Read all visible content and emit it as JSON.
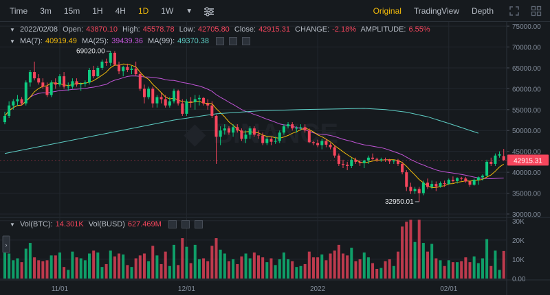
{
  "toolbar": {
    "timeframes": [
      "Time",
      "3m",
      "15m",
      "1H",
      "4H",
      "1D",
      "1W"
    ],
    "active_timeframe": "1D",
    "views": [
      "Original",
      "TradingView",
      "Depth"
    ],
    "active_view": "Original"
  },
  "legend": {
    "date": "2022/02/08",
    "open_label": "Open:",
    "open": "43870.10",
    "high_label": "High:",
    "high": "45578.78",
    "low_label": "Low:",
    "low": "42705.80",
    "close_label": "Close:",
    "close": "42915.31",
    "change_label": "CHANGE:",
    "change": "-2.18%",
    "amp_label": "AMPLITUDE:",
    "amplitude": "6.55%",
    "ma7_label": "MA(7):",
    "ma7": "40919.49",
    "ma25_label": "MA(25):",
    "ma25": "39439.36",
    "ma99_label": "MA(99):",
    "ma99": "49370.38"
  },
  "volume_legend": {
    "vol_btc_label": "Vol(BTC):",
    "vol_btc": "14.301K",
    "vol_busd_label": "Vol(BUSD)",
    "vol_busd": "627.469M"
  },
  "colors": {
    "up": "#0ecb81",
    "down": "#f6465d",
    "ma7": "#f0b90b",
    "ma25": "#c054d6",
    "ma99": "#5ecfc6",
    "background": "#161a1e",
    "grid": "#22272e"
  },
  "chart_data": {
    "type": "candlestick",
    "price_axis": {
      "ticks": [
        30000,
        35000,
        40000,
        45000,
        50000,
        55000,
        60000,
        65000,
        70000,
        75000
      ],
      "tick_labels": [
        "30000.00",
        "35000.00",
        "40000.00",
        "45000.00",
        "50000.00",
        "55000.00",
        "60000.00",
        "65000.00",
        "70000.00",
        "75000.00"
      ],
      "range": [
        29500,
        76000
      ]
    },
    "volume_axis": {
      "ticks": [
        0,
        10000,
        20000,
        30000
      ],
      "tick_labels": [
        "0.00",
        "10K",
        "20K",
        "30K"
      ],
      "range": [
        0,
        31000
      ]
    },
    "x_labels": [
      {
        "index": 13,
        "label": "11/01"
      },
      {
        "index": 43,
        "label": "12/01"
      },
      {
        "index": 74,
        "label": "2022"
      },
      {
        "index": 105,
        "label": "02/01"
      }
    ],
    "annotations": [
      {
        "index": 25,
        "price": 69020.0,
        "text": "69020.00",
        "side": "high"
      },
      {
        "index": 98,
        "price": 32950.01,
        "text": "32950.01",
        "side": "low"
      }
    ],
    "current_price": {
      "value": 42915.31,
      "text": "42915.31"
    },
    "ma99": [
      [
        0,
        44500
      ],
      [
        10,
        46500
      ],
      [
        20,
        48500
      ],
      [
        30,
        50500
      ],
      [
        40,
        52500
      ],
      [
        50,
        54000
      ],
      [
        60,
        54700
      ],
      [
        70,
        55000
      ],
      [
        80,
        55200
      ],
      [
        85,
        55300
      ],
      [
        90,
        55000
      ],
      [
        95,
        54400
      ],
      [
        100,
        53300
      ],
      [
        105,
        51700
      ],
      [
        112,
        49370
      ]
    ],
    "candles": [
      [
        52000,
        54500,
        51500,
        53500,
        18500
      ],
      [
        53500,
        57000,
        53000,
        56000,
        13000
      ],
      [
        56000,
        57500,
        55000,
        57000,
        9500
      ],
      [
        57000,
        58500,
        56000,
        57500,
        10500
      ],
      [
        57500,
        58000,
        56000,
        56500,
        8500
      ],
      [
        56500,
        62000,
        56000,
        61500,
        15500
      ],
      [
        61500,
        64500,
        60500,
        64000,
        18500
      ],
      [
        64000,
        66500,
        62000,
        62500,
        11000
      ],
      [
        62500,
        63500,
        61000,
        61500,
        9500
      ],
      [
        61500,
        62500,
        60000,
        60500,
        9000
      ],
      [
        60500,
        61500,
        58000,
        58500,
        9500
      ],
      [
        58500,
        62000,
        58000,
        61500,
        12000
      ],
      [
        61500,
        62500,
        60000,
        61000,
        12000
      ],
      [
        61000,
        63500,
        60500,
        63000,
        13500
      ],
      [
        63000,
        64000,
        60000,
        60500,
        6000
      ],
      [
        60500,
        61500,
        59500,
        60500,
        4500
      ],
      [
        60500,
        62500,
        60000,
        61800,
        14000
      ],
      [
        61800,
        62500,
        60500,
        61000,
        11000
      ],
      [
        61000,
        61500,
        59500,
        61200,
        10500
      ],
      [
        61200,
        62000,
        60500,
        61500,
        9500
      ],
      [
        61500,
        65000,
        61000,
        64500,
        13000
      ],
      [
        64500,
        65500,
        62500,
        63000,
        14500
      ],
      [
        63000,
        65500,
        62500,
        65000,
        13500
      ],
      [
        65000,
        67000,
        64500,
        66500,
        6000
      ],
      [
        66500,
        67200,
        65500,
        66200,
        7500
      ],
      [
        66200,
        69020,
        65500,
        68600,
        14500
      ],
      [
        68600,
        69000,
        65500,
        65800,
        11500
      ],
      [
        65800,
        66500,
        63500,
        64200,
        13000
      ],
      [
        64200,
        65500,
        63000,
        65200,
        12500
      ],
      [
        65200,
        66000,
        64000,
        64500,
        7000
      ],
      [
        64500,
        65500,
        63500,
        64800,
        6000
      ],
      [
        64800,
        66500,
        63000,
        63500,
        10500
      ],
      [
        63500,
        64000,
        59500,
        60000,
        12000
      ],
      [
        60000,
        61000,
        56500,
        58000,
        13000
      ],
      [
        58000,
        60500,
        57500,
        60000,
        9000
      ],
      [
        60000,
        60500,
        55500,
        56500,
        17000
      ],
      [
        56500,
        58500,
        55500,
        58000,
        12000
      ],
      [
        58000,
        59000,
        56500,
        57500,
        7500
      ],
      [
        57500,
        58500,
        55500,
        56000,
        14000
      ],
      [
        56000,
        58000,
        55500,
        57000,
        6500
      ],
      [
        57000,
        60000,
        56500,
        59500,
        17500
      ],
      [
        59500,
        59800,
        56000,
        56500,
        7000
      ],
      [
        56500,
        57500,
        53500,
        54000,
        21000
      ],
      [
        54000,
        57500,
        53500,
        57000,
        16500
      ],
      [
        57000,
        58000,
        55500,
        56800,
        8000
      ],
      [
        56800,
        58500,
        55000,
        57500,
        17500
      ],
      [
        57500,
        58500,
        56000,
        57800,
        10000
      ],
      [
        57800,
        58000,
        56000,
        56500,
        10500
      ],
      [
        56500,
        57500,
        55000,
        56000,
        9000
      ],
      [
        56000,
        57000,
        53000,
        53500,
        17000
      ],
      [
        53500,
        53800,
        42000,
        48500,
        21000
      ],
      [
        48500,
        51000,
        46500,
        50000,
        15000
      ],
      [
        50000,
        51500,
        49000,
        50500,
        13000
      ],
      [
        50500,
        51000,
        49000,
        49500,
        9000
      ],
      [
        49500,
        51500,
        48500,
        50800,
        10000
      ],
      [
        50800,
        51500,
        49500,
        50000,
        7500
      ],
      [
        50000,
        50500,
        47500,
        48000,
        11500
      ],
      [
        48000,
        50000,
        47000,
        49000,
        13000
      ],
      [
        49000,
        51000,
        48000,
        50500,
        10500
      ],
      [
        50500,
        51000,
        48500,
        49000,
        13500
      ],
      [
        49000,
        50000,
        48000,
        48800,
        12000
      ],
      [
        48800,
        49500,
        46500,
        47000,
        11000
      ],
      [
        47000,
        48500,
        46500,
        48000,
        8500
      ],
      [
        48000,
        48500,
        46500,
        47300,
        10500
      ],
      [
        47300,
        48500,
        46800,
        47500,
        7000
      ],
      [
        47500,
        50000,
        47000,
        49500,
        10000
      ],
      [
        49500,
        51500,
        49000,
        51000,
        13500
      ],
      [
        51000,
        52000,
        50500,
        51500,
        10000
      ],
      [
        51500,
        52000,
        50000,
        50500,
        9000
      ],
      [
        50500,
        51000,
        49500,
        50600,
        6000
      ],
      [
        50600,
        51500,
        50000,
        50800,
        6500
      ],
      [
        50800,
        51500,
        49500,
        50000,
        7500
      ],
      [
        50000,
        50500,
        47000,
        47200,
        14000
      ],
      [
        47200,
        47500,
        46500,
        47000,
        11000
      ],
      [
        47000,
        47800,
        46000,
        46500,
        11000
      ],
      [
        46500,
        48000,
        45500,
        47500,
        12500
      ],
      [
        47500,
        48000,
        46000,
        46600,
        9500
      ],
      [
        46600,
        47000,
        45500,
        46000,
        13000
      ],
      [
        46000,
        46500,
        43500,
        44000,
        14500
      ],
      [
        44000,
        44500,
        41500,
        42000,
        17500
      ],
      [
        42000,
        43000,
        41000,
        41800,
        13000
      ],
      [
        41800,
        42500,
        40500,
        41500,
        12000
      ],
      [
        41500,
        43500,
        41000,
        43000,
        16000
      ],
      [
        43000,
        43500,
        42000,
        42500,
        9000
      ],
      [
        42500,
        43000,
        41500,
        42200,
        10000
      ],
      [
        42200,
        43000,
        41000,
        42800,
        13500
      ],
      [
        42800,
        44000,
        42000,
        43500,
        11000
      ],
      [
        43500,
        44500,
        43000,
        43200,
        8000
      ],
      [
        43200,
        43500,
        42500,
        43000,
        5000
      ],
      [
        43000,
        43500,
        42500,
        43100,
        5500
      ],
      [
        43100,
        43500,
        42500,
        43000,
        9000
      ],
      [
        43000,
        43200,
        42000,
        42600,
        10000
      ],
      [
        42600,
        43000,
        42000,
        42800,
        6500
      ],
      [
        42800,
        43200,
        41500,
        42000,
        14000
      ],
      [
        42000,
        42500,
        39500,
        40000,
        27000
      ],
      [
        40000,
        40500,
        35500,
        36500,
        29500
      ],
      [
        36500,
        37500,
        34800,
        35500,
        30500
      ],
      [
        35500,
        36500,
        34800,
        36000,
        19000
      ],
      [
        36000,
        36500,
        32950,
        35000,
        30500
      ],
      [
        35000,
        38000,
        34500,
        37500,
        18500
      ],
      [
        37500,
        38500,
        36000,
        36500,
        14000
      ],
      [
        36500,
        38000,
        36000,
        37200,
        18000
      ],
      [
        37200,
        37800,
        35500,
        36600,
        10500
      ],
      [
        36600,
        37800,
        36300,
        37400,
        9500
      ],
      [
        37400,
        38000,
        36500,
        37200,
        6500
      ],
      [
        37200,
        38500,
        37000,
        38200,
        9500
      ],
      [
        38200,
        39000,
        37500,
        37900,
        8500
      ],
      [
        37900,
        38800,
        37300,
        38600,
        8500
      ],
      [
        38600,
        38900,
        38000,
        38500,
        9000
      ],
      [
        38500,
        38900,
        37500,
        37800,
        11000
      ],
      [
        37800,
        38000,
        36500,
        37000,
        8500
      ],
      [
        37000,
        38500,
        36800,
        38200,
        11500
      ],
      [
        38200,
        39000,
        37000,
        38800,
        8000
      ],
      [
        38800,
        39500,
        38000,
        39200,
        10500
      ],
      [
        39200,
        43000,
        39000,
        42500,
        20500
      ],
      [
        42500,
        43500,
        41500,
        42000,
        6500
      ],
      [
        42000,
        44500,
        41500,
        44000,
        14500
      ],
      [
        44000,
        45000,
        43500,
        44300,
        4500
      ],
      [
        43870,
        45578,
        42705,
        42915,
        14301
      ]
    ]
  }
}
